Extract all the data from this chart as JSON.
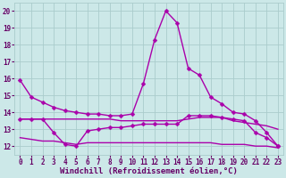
{
  "xlabel": "Windchill (Refroidissement éolien,°C)",
  "x_ticks": [
    0,
    1,
    2,
    3,
    4,
    5,
    6,
    7,
    8,
    9,
    10,
    11,
    12,
    13,
    14,
    15,
    16,
    17,
    18,
    19,
    20,
    21,
    22,
    23
  ],
  "ylim": [
    11.5,
    20.5
  ],
  "xlim": [
    -0.5,
    23.5
  ],
  "yticks": [
    12,
    13,
    14,
    15,
    16,
    17,
    18,
    19,
    20
  ],
  "bg_color": "#cce8e8",
  "grid_color": "#aacccc",
  "line_color": "#aa00aa",
  "lines": [
    {
      "x": [
        0,
        1,
        2,
        3,
        4,
        5,
        6,
        7,
        8,
        9,
        10,
        11,
        12,
        13,
        14,
        15,
        16,
        17,
        18,
        19,
        20,
        21,
        22,
        23
      ],
      "y": [
        15.9,
        14.9,
        14.6,
        14.3,
        14.1,
        14.0,
        13.9,
        13.9,
        13.8,
        13.8,
        13.9,
        15.7,
        18.3,
        20.0,
        19.3,
        16.6,
        16.2,
        14.9,
        14.5,
        14.0,
        13.9,
        13.5,
        12.8,
        12.0
      ],
      "marker": true
    },
    {
      "x": [
        0,
        1,
        2,
        3,
        4,
        5,
        6,
        7,
        8,
        9,
        10,
        11,
        12,
        13,
        14,
        15,
        16,
        17,
        18,
        19,
        20,
        21,
        22,
        23
      ],
      "y": [
        13.6,
        13.6,
        13.6,
        12.8,
        12.1,
        12.0,
        12.9,
        13.0,
        13.1,
        13.1,
        13.2,
        13.3,
        13.3,
        13.3,
        13.3,
        13.8,
        13.8,
        13.8,
        13.7,
        13.6,
        13.5,
        12.8,
        12.5,
        12.0
      ],
      "marker": true
    },
    {
      "x": [
        0,
        1,
        2,
        3,
        4,
        5,
        6,
        7,
        8,
        9,
        10,
        11,
        12,
        13,
        14,
        15,
        16,
        17,
        18,
        19,
        20,
        21,
        22,
        23
      ],
      "y": [
        13.6,
        13.6,
        13.6,
        13.6,
        13.6,
        13.6,
        13.6,
        13.6,
        13.6,
        13.5,
        13.5,
        13.5,
        13.5,
        13.5,
        13.5,
        13.6,
        13.7,
        13.7,
        13.7,
        13.5,
        13.4,
        13.3,
        13.2,
        13.0
      ],
      "marker": false
    },
    {
      "x": [
        0,
        1,
        2,
        3,
        4,
        5,
        6,
        7,
        8,
        9,
        10,
        11,
        12,
        13,
        14,
        15,
        16,
        17,
        18,
        19,
        20,
        21,
        22,
        23
      ],
      "y": [
        12.5,
        12.4,
        12.3,
        12.3,
        12.2,
        12.1,
        12.2,
        12.2,
        12.2,
        12.2,
        12.2,
        12.2,
        12.2,
        12.2,
        12.2,
        12.2,
        12.2,
        12.2,
        12.1,
        12.1,
        12.1,
        12.0,
        12.0,
        11.9
      ],
      "marker": false
    }
  ],
  "line_width": 1.0,
  "marker_size": 2.5,
  "font_color": "#660066",
  "tick_font_size": 5.5,
  "xlabel_font_size": 6.5
}
